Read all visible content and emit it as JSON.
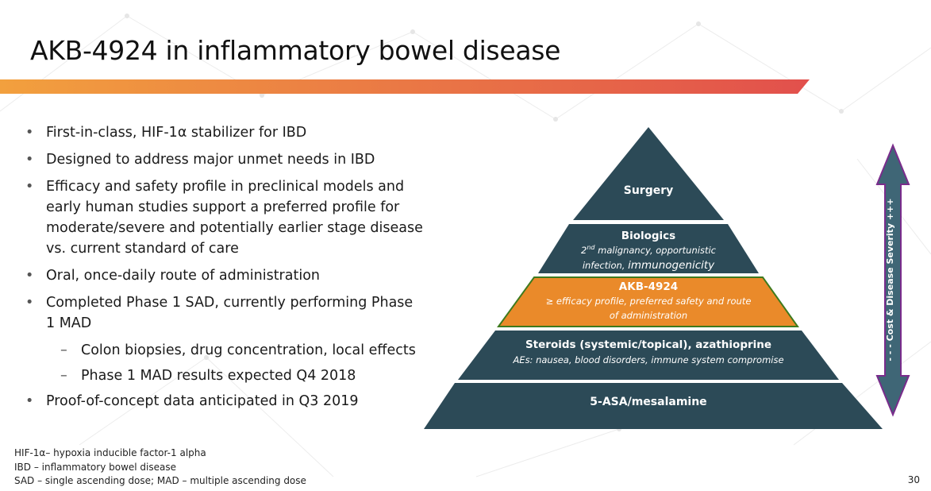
{
  "slide": {
    "title": "AKB-4924 in inflammatory bowel disease",
    "page_number": "30"
  },
  "bullets": [
    {
      "text": "First-in-class, HIF-1α stabilizer for IBD"
    },
    {
      "text": "Designed to address major unmet needs in IBD"
    },
    {
      "lines": [
        "Efficacy and safety profile in preclinical models and",
        "early human studies support a preferred profile for",
        "moderate/severe and potentially earlier stage disease",
        "vs. current standard of care"
      ]
    },
    {
      "text": "Oral, once-daily route of administration"
    },
    {
      "lines": [
        "Completed Phase 1 SAD, currently performing Phase",
        "1 MAD"
      ]
    }
  ],
  "sub_bullets": [
    "Colon biopsies, drug concentration, local effects",
    "Phase 1 MAD results expected Q4 2018"
  ],
  "final_bullet": "Proof-of-concept data anticipated in Q3 2019",
  "pyramid": {
    "surgery": "Surgery",
    "biologics": {
      "title": "Biologics",
      "sup_pre": "2",
      "sup": "nd",
      "line1": " malignancy, opportunistic",
      "line2": "infection, ",
      "line2_emph": "immunogenicity"
    },
    "akb": {
      "title": "AKB-4924",
      "line1": "≥ efficacy profile, preferred safety and route",
      "line2": "of administration"
    },
    "steroids": {
      "title": "Steroids (systemic/topical), azathioprine",
      "line1": "AEs: nausea, blood disorders, immune system compromise"
    },
    "asa": "5-ASA/mesalamine",
    "arrow_label": "- - - Cost & Disease Severity +++"
  },
  "footnotes": [
    "HIF-1α– hypoxia inducible factor-1 alpha",
    "IBD – inflammatory bowel disease",
    "SAD – single ascending dose; MAD – multiple ascending dose"
  ],
  "colors": {
    "pyramid_dark": "#2c4a57",
    "akb_orange": "#ea8a2a",
    "akb_border": "#3e7a1e",
    "arrow_fill": "#3f6676",
    "arrow_border": "#7a2c8c",
    "bar_start": "#f2a03e",
    "bar_end": "#e2504c"
  }
}
